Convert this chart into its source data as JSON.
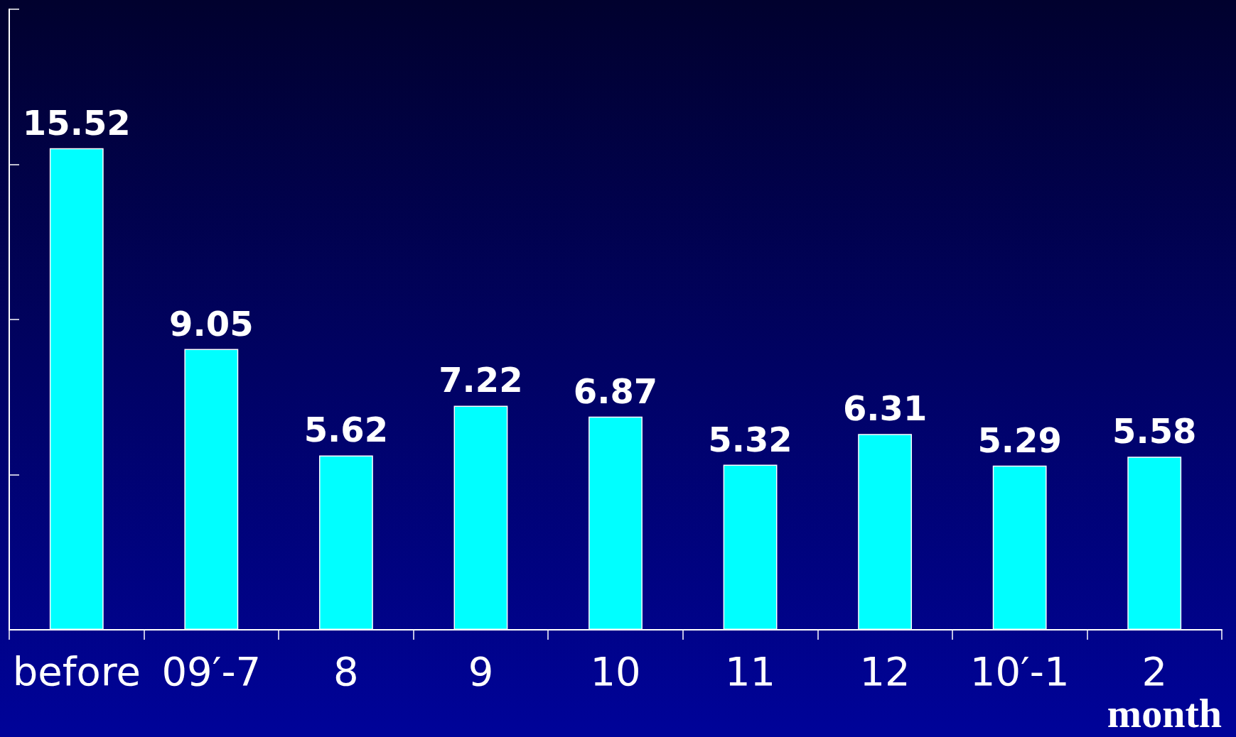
{
  "chart_data": {
    "type": "bar",
    "categories": [
      "before",
      "09′-7",
      "8",
      "9",
      "10",
      "11",
      "12",
      "10′-1",
      "2"
    ],
    "values": [
      15.52,
      9.05,
      5.62,
      7.22,
      6.87,
      5.32,
      6.31,
      5.29,
      5.58
    ],
    "color": "#00ffff",
    "xlabel": "month",
    "ylim": [
      0,
      20
    ],
    "yticks": [
      {
        "value": 0,
        "label": null
      },
      {
        "value": 5,
        "label": null
      },
      {
        "value": 10,
        "label": null
      },
      {
        "value": 15,
        "label": null
      },
      {
        "value": 20,
        "label": null
      }
    ],
    "tick_labels": "x",
    "data_labels": true,
    "grid": false
  }
}
